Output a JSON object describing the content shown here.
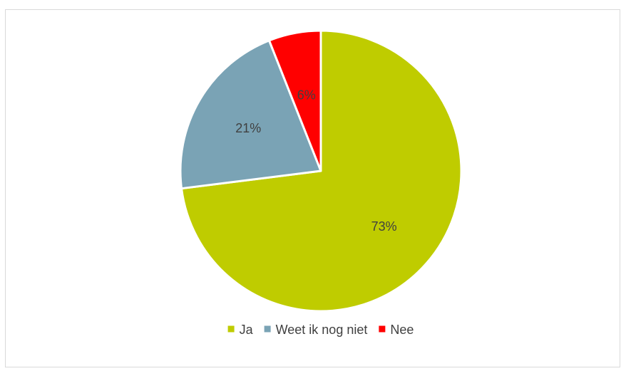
{
  "chart_data": {
    "type": "pie",
    "title": "",
    "categories": [
      "Ja",
      "Weet ik nog niet",
      "Nee"
    ],
    "values": [
      73,
      21,
      6
    ],
    "value_labels": [
      "73%",
      "21%",
      "6%"
    ],
    "colors": [
      "#bfcc00",
      "#7aa3b5",
      "#ff0000"
    ],
    "start_angle_deg": 0,
    "direction": "clockwise",
    "legend_position": "bottom"
  }
}
